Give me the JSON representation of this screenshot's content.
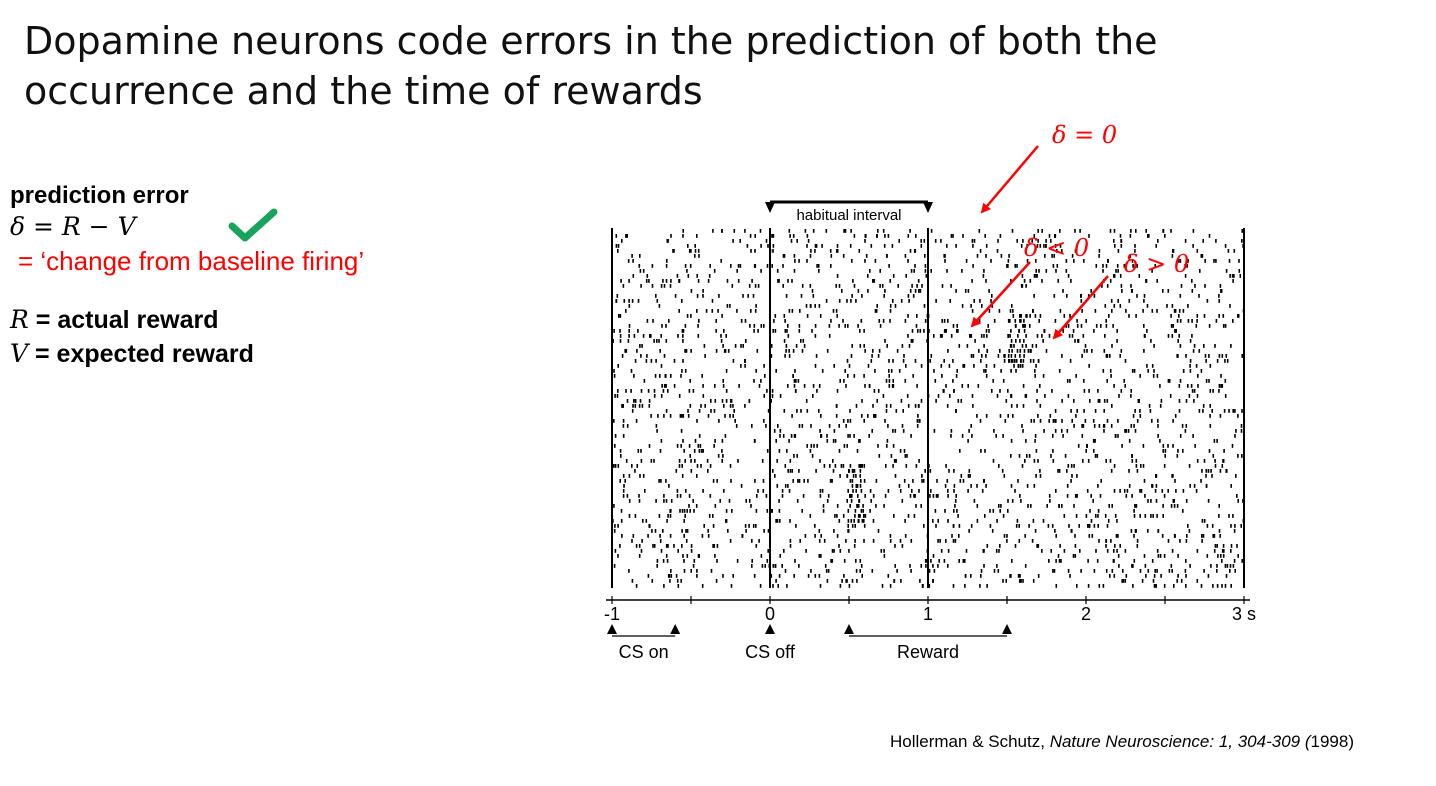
{
  "slide": {
    "title_line1": "Dopamine neurons code errors in the prediction of both the",
    "title_line2": "occurrence and the time of rewards"
  },
  "left_panel": {
    "prediction_error_label": "prediction error",
    "formula": {
      "delta": "δ",
      "eq": " = ",
      "R": "R",
      "minus": " − ",
      "V": "V"
    },
    "check_icon": "checkmark-icon",
    "check_color": "#1aa35a",
    "change_text": " = ‘change from baseline firing’",
    "change_color": "#ff0000",
    "R_symbol": "R",
    "R_text": " = actual reward",
    "V_symbol": "V",
    "V_text": " = expected reward"
  },
  "figure": {
    "habitual_interval_label": "habitual interval",
    "x_tick_labels": [
      "-1",
      "0",
      "1",
      "2",
      "3 s"
    ],
    "x_ticks": [
      -1,
      0,
      1,
      2,
      3
    ],
    "x_range": [
      -1,
      3
    ],
    "event_labels": {
      "cs_on": "CS on",
      "cs_off": "CS off",
      "reward": "Reward"
    },
    "cs_on_interval": [
      -1,
      -0.6
    ],
    "cs_off_time": 0,
    "reward_interval": [
      0.5,
      1.5
    ],
    "habitual_interval": [
      0,
      1
    ],
    "vertical_marker_times": [
      0,
      1
    ],
    "annotation_color": "#ff0000",
    "annotations": {
      "delta_zero": "δ = 0",
      "delta_neg": "δ < 0",
      "delta_pos": "δ > 0"
    }
  },
  "citation": {
    "authors": "Hollerman & Schutz, ",
    "journal": "Nature Neuroscience: 1, 304-309 (",
    "year": "1998)"
  }
}
